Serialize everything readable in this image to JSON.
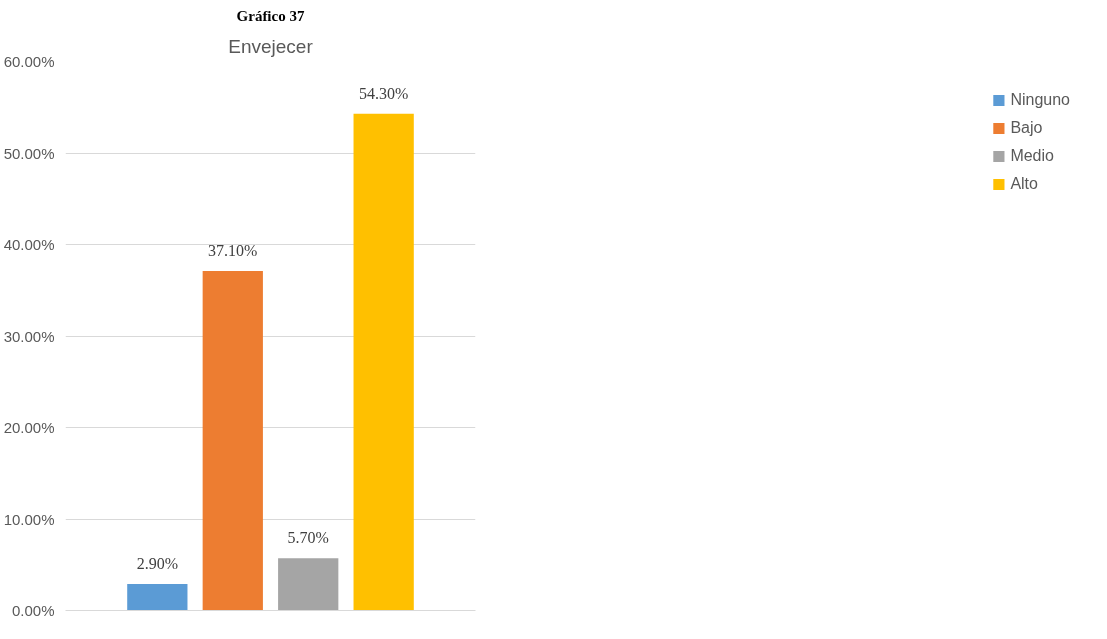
{
  "chart_data": {
    "type": "bar",
    "title": "Gráfico 37",
    "subtitle": "Envejecer",
    "categories": [
      null
    ],
    "series": [
      {
        "name": "Ninguno",
        "color": "#5b9bd5",
        "values": [
          2.9
        ],
        "value_labels": [
          "2.90%"
        ]
      },
      {
        "name": "Bajo",
        "color": "#ed7d31",
        "values": [
          37.1
        ],
        "value_labels": [
          "37.10%"
        ]
      },
      {
        "name": "Medio",
        "color": "#a5a5a5",
        "values": [
          5.7
        ],
        "value_labels": [
          "5.70%"
        ]
      },
      {
        "name": "Alto",
        "color": "#ffc000",
        "values": [
          54.3
        ],
        "value_labels": [
          "54.30%"
        ]
      }
    ],
    "ylim": [
      0,
      60
    ],
    "yticks": [
      {
        "value": 0,
        "label": "0.00%"
      },
      {
        "value": 10,
        "label": "10.00%"
      },
      {
        "value": 20,
        "label": "20.00%"
      },
      {
        "value": 30,
        "label": "30.00%"
      },
      {
        "value": 40,
        "label": "40.00%"
      },
      {
        "value": 50,
        "label": "50.00%"
      },
      {
        "value": 60,
        "label": "60.00%"
      }
    ],
    "grid": "y",
    "legend": "right",
    "tick_labels": "y"
  }
}
